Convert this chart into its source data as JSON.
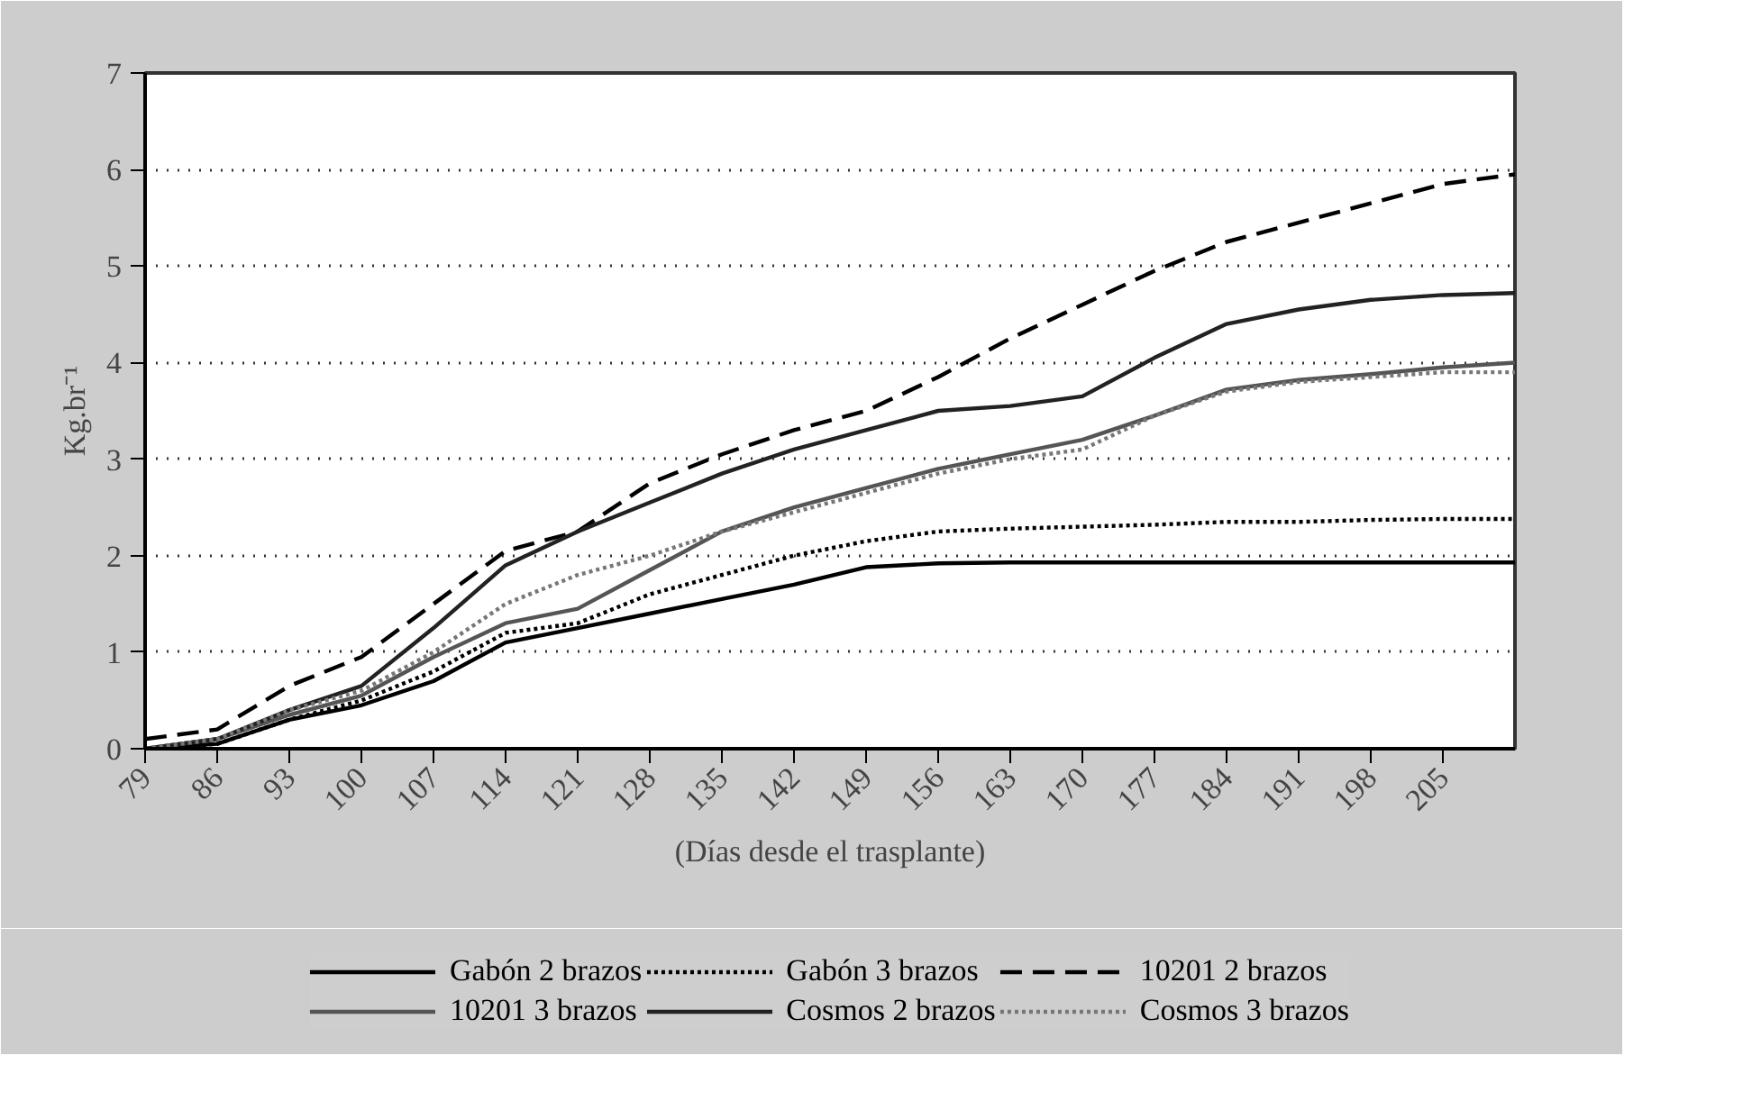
{
  "chart_data": {
    "type": "line",
    "xlabel": "(Días desde el trasplante)",
    "ylabel": "Kg.br⁻¹",
    "x": [
      79,
      86,
      93,
      100,
      107,
      114,
      121,
      128,
      135,
      142,
      149,
      156,
      163,
      170,
      177,
      184,
      191,
      198,
      205,
      212
    ],
    "xlim": [
      79,
      212
    ],
    "xticks": [
      79,
      86,
      93,
      100,
      107,
      114,
      121,
      128,
      135,
      142,
      149,
      156,
      163,
      170,
      177,
      184,
      191,
      198,
      205
    ],
    "ylim": [
      0,
      7
    ],
    "yticks": [
      0,
      1,
      2,
      3,
      4,
      5,
      6,
      7
    ],
    "grid": "y",
    "legend": "bottom",
    "series": [
      {
        "name": "Gabón 2 brazos",
        "color": "#000000",
        "line_style": "solid",
        "values": [
          0.0,
          0.05,
          0.3,
          0.45,
          0.7,
          1.1,
          1.25,
          1.4,
          1.55,
          1.7,
          1.88,
          1.92,
          1.93,
          1.93,
          1.93,
          1.93,
          1.93,
          1.93,
          1.93,
          1.93
        ]
      },
      {
        "name": "Gabón 3 brazos",
        "color": "#000000",
        "line_style": "dotted",
        "values": [
          0.0,
          0.05,
          0.3,
          0.5,
          0.8,
          1.2,
          1.3,
          1.6,
          1.8,
          2.0,
          2.15,
          2.25,
          2.28,
          2.3,
          2.32,
          2.35,
          2.35,
          2.37,
          2.38,
          2.38
        ]
      },
      {
        "name": "10201 2 brazos",
        "color": "#000000",
        "line_style": "dashed",
        "values": [
          0.1,
          0.2,
          0.65,
          0.95,
          1.5,
          2.05,
          2.25,
          2.75,
          3.05,
          3.3,
          3.5,
          3.85,
          4.25,
          4.6,
          4.95,
          5.25,
          5.45,
          5.65,
          5.85,
          5.95
        ]
      },
      {
        "name": "10201 3 brazos",
        "color": "#555555",
        "line_style": "solid",
        "values": [
          0.0,
          0.1,
          0.35,
          0.55,
          0.95,
          1.3,
          1.45,
          1.85,
          2.25,
          2.5,
          2.7,
          2.9,
          3.05,
          3.2,
          3.45,
          3.72,
          3.82,
          3.88,
          3.95,
          4.0
        ]
      },
      {
        "name": "Cosmos 2 brazos",
        "color": "#222222",
        "line_style": "solid",
        "values": [
          0.0,
          0.1,
          0.4,
          0.65,
          1.25,
          1.9,
          2.25,
          2.55,
          2.85,
          3.1,
          3.3,
          3.5,
          3.55,
          3.65,
          4.05,
          4.4,
          4.55,
          4.65,
          4.7,
          4.72
        ]
      },
      {
        "name": "Cosmos 3 brazos",
        "color": "#777777",
        "line_style": "dotted",
        "values": [
          0.0,
          0.1,
          0.4,
          0.6,
          1.0,
          1.5,
          1.8,
          2.0,
          2.25,
          2.45,
          2.65,
          2.85,
          3.0,
          3.1,
          3.45,
          3.7,
          3.8,
          3.85,
          3.9,
          3.9
        ]
      }
    ]
  }
}
